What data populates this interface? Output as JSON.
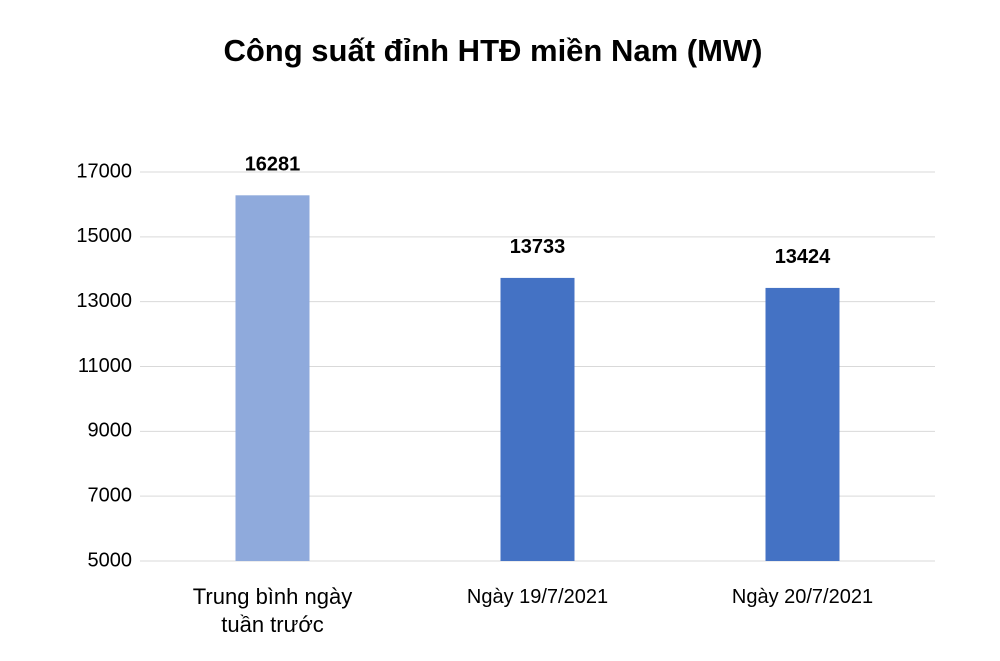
{
  "chart_data": {
    "type": "bar",
    "title": "Công suất đỉnh HTĐ miền Nam (MW)",
    "categories": [
      "Trung bình ngày tuần trước",
      "Ngày 19/7/2021",
      "Ngày 20/7/2021"
    ],
    "values": [
      16281,
      13733,
      13424
    ],
    "colors": [
      "#8faadc",
      "#4472c4",
      "#4472c4"
    ],
    "ylim": [
      5000,
      17000
    ],
    "yticks": [
      5000,
      7000,
      9000,
      11000,
      13000,
      15000,
      17000
    ],
    "grid": true
  }
}
